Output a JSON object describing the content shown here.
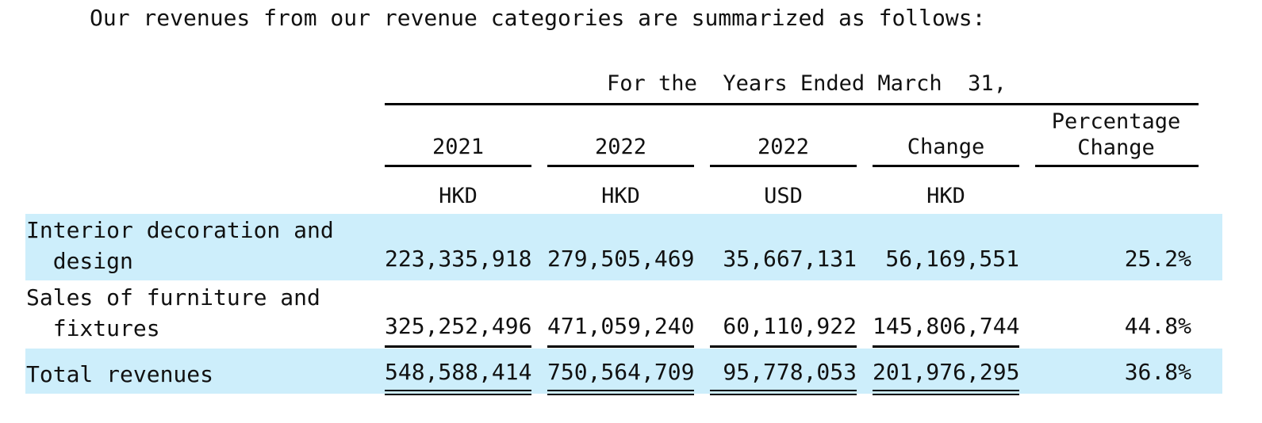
{
  "intro": "Our revenues from our revenue categories are summarized as follows:",
  "period_header": "For the  Years Ended March  31,",
  "columns": [
    {
      "year": "2021",
      "currency": "HKD"
    },
    {
      "year": "2022",
      "currency": "HKD"
    },
    {
      "year": "2022",
      "currency": "USD"
    },
    {
      "year": "Change",
      "currency": "HKD"
    },
    {
      "year": "Percentage Change",
      "currency": ""
    }
  ],
  "rows": [
    {
      "label_line1": "Interior decoration and",
      "label_line2": "  design",
      "values": [
        "223,335,918",
        "279,505,469",
        "35,667,131",
        "56,169,551",
        "25.2%"
      ]
    },
    {
      "label_line1": "Sales of furniture and",
      "label_line2": "  fixtures",
      "values": [
        "325,252,496",
        "471,059,240",
        "60,110,922",
        "145,806,744",
        "44.8%"
      ]
    },
    {
      "label_line1": "Total revenues",
      "label_line2": "",
      "values": [
        "548,588,414",
        "750,564,709",
        "95,778,053",
        "201,976,295",
        "36.8%"
      ]
    }
  ]
}
